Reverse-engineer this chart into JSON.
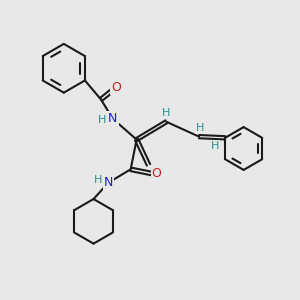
{
  "bg_color": "#e8e8e8",
  "bond_color": "#1a1a1a",
  "N_color": "#2020cc",
  "O_color": "#cc2020",
  "H_color": "#2a9090",
  "bond_width": 1.5,
  "dbo": 0.055,
  "xlim": [
    0,
    10
  ],
  "ylim": [
    0,
    10
  ]
}
